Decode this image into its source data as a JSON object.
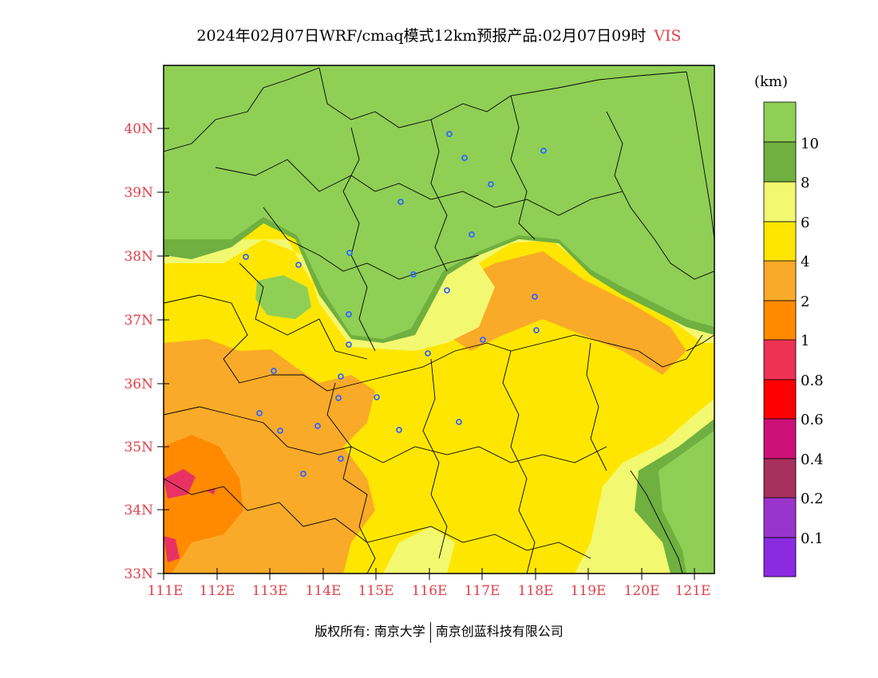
{
  "title": {
    "main": "2024年02月07日WRF/cmaq模式12km预报产品:02月07日09时",
    "variable": "VIS"
  },
  "map": {
    "lat_labels": [
      "40N",
      "39N",
      "38N",
      "37N",
      "36N",
      "35N",
      "34N",
      "33N"
    ],
    "lon_labels": [
      "111E",
      "112E",
      "113E",
      "114E",
      "115E",
      "116E",
      "117E",
      "118E",
      "119E",
      "120E",
      "121E"
    ],
    "colors": {
      "green_light": "#8fcf55",
      "green_dark": "#6fb040",
      "yellow_light": "#f2f870",
      "yellow": "#ffe600",
      "orange_light": "#f9aa28",
      "orange": "#ff8a00",
      "magenta": "#e83264",
      "border": "#000000",
      "city_marker": "#3366ff"
    }
  },
  "colorbar": {
    "unit": "(km)",
    "levels": [
      {
        "label": "10",
        "color": "#8fcf55"
      },
      {
        "label": "8",
        "color": "#6fb040"
      },
      {
        "label": "6",
        "color": "#f2f870"
      },
      {
        "label": "4",
        "color": "#ffe600"
      },
      {
        "label": "2",
        "color": "#f9aa28"
      },
      {
        "label": "1",
        "color": "#ff8a00"
      },
      {
        "label": "0.8",
        "color": "#ee3256"
      },
      {
        "label": "0.6",
        "color": "#ff0000"
      },
      {
        "label": "0.4",
        "color": "#cc1177"
      },
      {
        "label": "0.2",
        "color": "#a8305c"
      },
      {
        "label": "0.1",
        "color": "#9935cc"
      },
      {
        "label": "",
        "color": "#8a2be2"
      }
    ]
  },
  "footer": {
    "left": "版权所有: 南京大学",
    "right": "南京创蓝科技有限公司"
  }
}
